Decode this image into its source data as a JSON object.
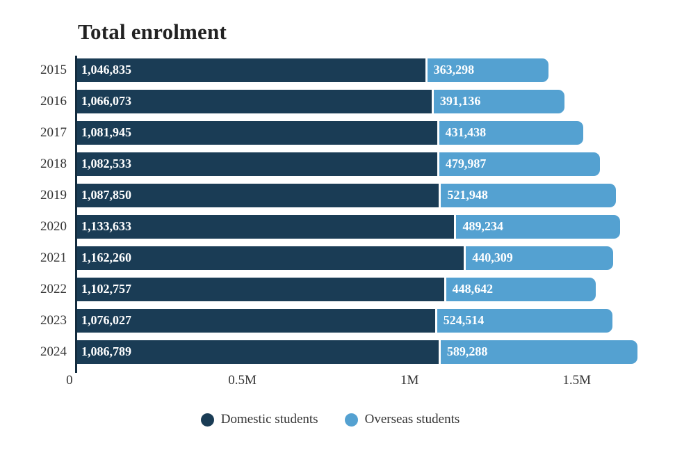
{
  "chart_data": {
    "type": "bar",
    "stacked": true,
    "orientation": "horizontal",
    "title": "Total enrolment",
    "categories": [
      "2015",
      "2016",
      "2017",
      "2018",
      "2019",
      "2020",
      "2021",
      "2022",
      "2023",
      "2024"
    ],
    "series": [
      {
        "name": "Domestic students",
        "color": "#1a3c55",
        "values": [
          1046835,
          1066073,
          1081945,
          1082533,
          1087850,
          1133633,
          1162260,
          1102757,
          1076027,
          1086789
        ],
        "labels": [
          "1,046,835",
          "1,066,073",
          "1,081,945",
          "1,082,533",
          "1,087,850",
          "1,133,633",
          "1,162,260",
          "1,102,757",
          "1,076,027",
          "1,086,789"
        ]
      },
      {
        "name": "Overseas students",
        "color": "#54a1d1",
        "values": [
          363298,
          391136,
          431438,
          479987,
          521948,
          489234,
          440309,
          448642,
          524514,
          589288
        ],
        "labels": [
          "363,298",
          "391,136",
          "431,438",
          "479,987",
          "521,948",
          "489,234",
          "440,309",
          "448,642",
          "524,514",
          "589,288"
        ]
      }
    ],
    "xlabel": "",
    "ylabel": "",
    "xlim": [
      0,
      1750000
    ],
    "ticks": [
      {
        "value": 0,
        "label": "0"
      },
      {
        "value": 500000,
        "label": "0.5M"
      },
      {
        "value": 1000000,
        "label": "1M"
      },
      {
        "value": 1500000,
        "label": "1.5M"
      }
    ],
    "grid": false,
    "legend_position": "bottom"
  }
}
